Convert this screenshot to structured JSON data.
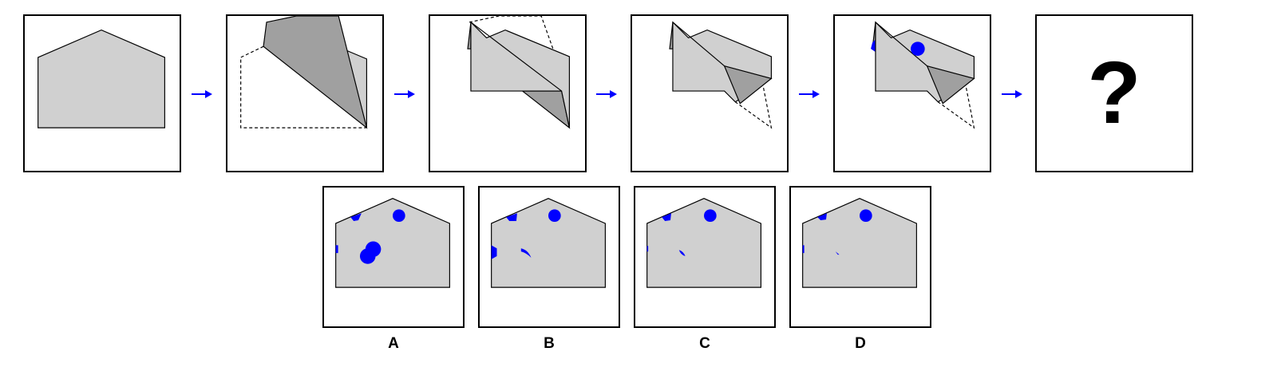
{
  "question": {
    "unknown_symbol": "?"
  },
  "options": [
    {
      "label": "A"
    },
    {
      "label": "B"
    },
    {
      "label": "C"
    },
    {
      "label": "D"
    }
  ],
  "colors": {
    "paper": "#d0d0d0",
    "paper_back": "#a0a0a0",
    "hole": "#0000ff",
    "arrow": "#0000ff",
    "outline": "#000000"
  }
}
